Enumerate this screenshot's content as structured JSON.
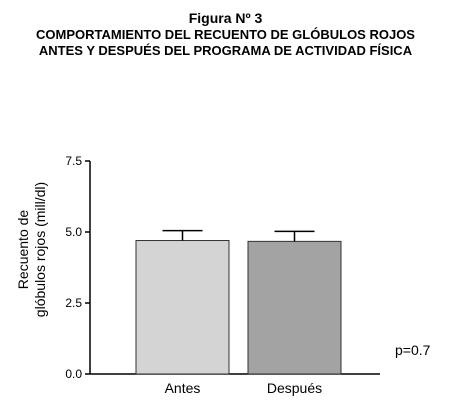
{
  "figure": {
    "label": "Figura Nº 3",
    "title": "COMPORTAMIENTO DEL RECUENTO DE GLÓBULOS ROJOS ANTES Y DESPUÉS DEL  PROGRAMA DE ACTIVIDAD FÍSICA"
  },
  "chart_data": {
    "type": "bar",
    "categories": [
      "Antes",
      "Después"
    ],
    "values": [
      4.7,
      4.67
    ],
    "error": [
      0.35,
      0.35
    ],
    "colors": [
      "#d4d4d4",
      "#a3a3a3"
    ],
    "ylabel_lines": [
      "Recuento de",
      "glóbulos rojos (mill/dl)"
    ],
    "yticks": [
      0.0,
      2.5,
      5.0,
      7.5
    ],
    "ytick_labels": [
      "0.0",
      "2.5",
      "5.0",
      "7.5"
    ],
    "ylim": [
      0,
      7.5
    ],
    "annotation": "p=0.7",
    "grid": false
  }
}
